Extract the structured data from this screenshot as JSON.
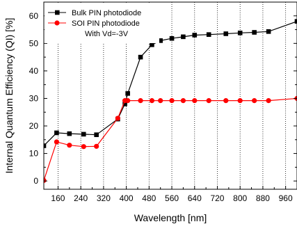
{
  "chart_data": {
    "type": "line",
    "xlabel": "Wavelength [nm]",
    "ylabel": "Internal Quantum Efficiency (QI) [%]",
    "xlim": [
      110,
      1000
    ],
    "ylim": [
      -3,
      65
    ],
    "xticks": [
      160,
      240,
      320,
      400,
      480,
      560,
      640,
      720,
      800,
      880,
      960
    ],
    "yticks": [
      0,
      10,
      20,
      30,
      40,
      50,
      60
    ],
    "grid": "vertical dotted lines at x ticks",
    "legend_position": "top-left",
    "annotation": "With Vd=-3V",
    "series": [
      {
        "name": "Bulk PIN photodiode",
        "color": "#000000",
        "marker": "square",
        "x": [
          110,
          155,
          200,
          250,
          295,
          370,
          395,
          405,
          450,
          490,
          520,
          560,
          600,
          640,
          690,
          750,
          800,
          850,
          900,
          1000
        ],
        "y": [
          12.8,
          17.5,
          17.2,
          17.0,
          16.8,
          22.5,
          28.0,
          31.8,
          45.0,
          49.5,
          51.0,
          51.8,
          52.4,
          53.0,
          53.2,
          53.5,
          53.8,
          54.0,
          54.3,
          58.0
        ]
      },
      {
        "name": "SOI PIN photodiode",
        "color": "#ff0000",
        "marker": "circle",
        "x": [
          110,
          155,
          200,
          250,
          295,
          370,
          395,
          405,
          450,
          490,
          520,
          560,
          600,
          640,
          690,
          750,
          800,
          850,
          900,
          1000
        ],
        "y": [
          0.2,
          14.2,
          13.0,
          12.5,
          12.6,
          22.8,
          29.2,
          29.2,
          29.2,
          29.2,
          29.2,
          29.2,
          29.2,
          29.2,
          29.2,
          29.2,
          29.2,
          29.2,
          29.2,
          30.0
        ]
      }
    ]
  }
}
